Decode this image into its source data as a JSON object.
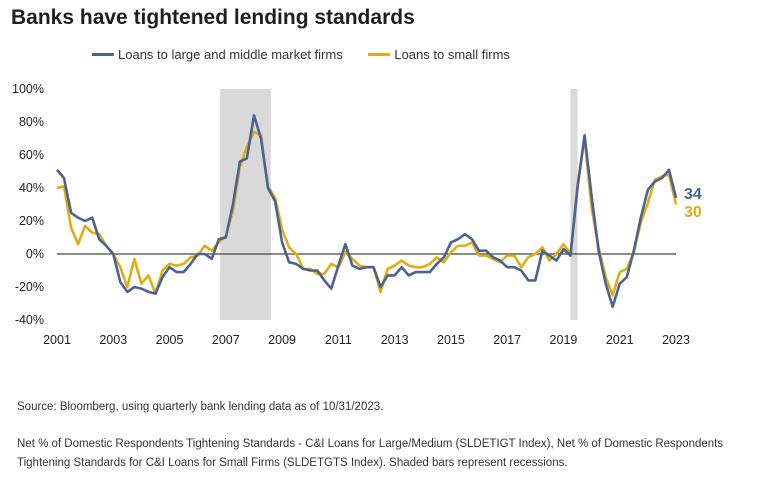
{
  "title": "Banks have tightened lending standards",
  "source": "Source: Bloomberg, using quarterly bank lending data as of 10/31/2023.",
  "note": "Net % of Domestic Respondents Tightening Standards - C&I Loans for Large/Medium (SLDETIGT Index), Net % of Domestic Respondents Tightening Standards for C&I Loans for Small Firms (SLDETGTS Index). Shaded bars represent recessions.",
  "colors": {
    "large": "#4a6394",
    "small": "#e1ad10",
    "recession": "#d9d9d9",
    "zero_line": "#444444"
  },
  "chart_data": {
    "type": "line",
    "title": "Banks have tightened lending standards",
    "xlim": [
      2001,
      2023.5
    ],
    "ylim": [
      -40,
      100
    ],
    "y_ticks": [
      -40,
      -20,
      0,
      20,
      40,
      60,
      80,
      100
    ],
    "y_tick_labels": [
      "-40%",
      "-20%",
      "0%",
      "20%",
      "40%",
      "60%",
      "80%",
      "100%"
    ],
    "x_ticks": [
      2001,
      2003,
      2005,
      2007,
      2009,
      2011,
      2013,
      2015,
      2017,
      2019,
      2021,
      2023
    ],
    "x_tick_labels": [
      "2001",
      "2003",
      "2005",
      "2007",
      "2009",
      "2011",
      "2013",
      "2015",
      "2017",
      "2019",
      "2021",
      "2023"
    ],
    "legend_position": "top",
    "recessions": [
      [
        2006.8,
        2008.6
      ],
      [
        2019.25,
        2019.5
      ]
    ],
    "series": [
      {
        "name": "Loans to large and middle market firms",
        "end_label": "34",
        "points": [
          [
            2001.0,
            51
          ],
          [
            2001.25,
            46
          ],
          [
            2001.5,
            25
          ],
          [
            2001.75,
            22
          ],
          [
            2002.0,
            20
          ],
          [
            2002.25,
            22
          ],
          [
            2002.5,
            9
          ],
          [
            2002.75,
            5
          ],
          [
            2003.0,
            0
          ],
          [
            2003.25,
            -17
          ],
          [
            2003.5,
            -23
          ],
          [
            2003.75,
            -20
          ],
          [
            2004.0,
            -21
          ],
          [
            2004.25,
            -23
          ],
          [
            2004.5,
            -24
          ],
          [
            2004.75,
            -14
          ],
          [
            2005.0,
            -8
          ],
          [
            2005.25,
            -11
          ],
          [
            2005.5,
            -11
          ],
          [
            2005.75,
            -6
          ],
          [
            2006.0,
            0
          ],
          [
            2006.25,
            0
          ],
          [
            2006.5,
            -3
          ],
          [
            2006.75,
            9
          ],
          [
            2007.0,
            10
          ],
          [
            2007.25,
            30
          ],
          [
            2007.5,
            56
          ],
          [
            2007.75,
            58
          ],
          [
            2008.0,
            84
          ],
          [
            2008.25,
            70
          ],
          [
            2008.5,
            40
          ],
          [
            2008.75,
            32
          ],
          [
            2009.0,
            7
          ],
          [
            2009.25,
            -5
          ],
          [
            2009.5,
            -6
          ],
          [
            2009.75,
            -9
          ],
          [
            2010.0,
            -10
          ],
          [
            2010.25,
            -10
          ],
          [
            2010.5,
            -16
          ],
          [
            2010.75,
            -21
          ],
          [
            2011.0,
            -7
          ],
          [
            2011.25,
            6
          ],
          [
            2011.5,
            -7
          ],
          [
            2011.75,
            -9
          ],
          [
            2012.0,
            -8
          ],
          [
            2012.25,
            -8
          ],
          [
            2012.5,
            -20
          ],
          [
            2012.75,
            -13
          ],
          [
            2013.0,
            -13
          ],
          [
            2013.25,
            -8
          ],
          [
            2013.5,
            -13
          ],
          [
            2013.75,
            -11
          ],
          [
            2014.0,
            -11
          ],
          [
            2014.25,
            -11
          ],
          [
            2014.5,
            -6
          ],
          [
            2014.75,
            -2
          ],
          [
            2015.0,
            7
          ],
          [
            2015.25,
            9
          ],
          [
            2015.5,
            12
          ],
          [
            2015.75,
            9
          ],
          [
            2016.0,
            2
          ],
          [
            2016.25,
            2
          ],
          [
            2016.5,
            -2
          ],
          [
            2016.75,
            -4
          ],
          [
            2017.0,
            -8
          ],
          [
            2017.25,
            -8
          ],
          [
            2017.5,
            -10
          ],
          [
            2017.75,
            -16
          ],
          [
            2018.0,
            -16
          ],
          [
            2018.25,
            2
          ],
          [
            2018.5,
            -1
          ],
          [
            2018.75,
            -4
          ],
          [
            2019.0,
            3
          ],
          [
            2019.25,
            -1
          ],
          [
            2019.5,
            40
          ],
          [
            2019.75,
            72
          ],
          [
            2020.0,
            35
          ],
          [
            2020.25,
            2
          ],
          [
            2020.5,
            -18
          ],
          [
            2020.75,
            -32
          ],
          [
            2021.0,
            -18
          ],
          [
            2021.25,
            -14
          ],
          [
            2021.5,
            2
          ],
          [
            2021.75,
            22
          ],
          [
            2022.0,
            39
          ],
          [
            2022.25,
            44
          ],
          [
            2022.5,
            46
          ],
          [
            2022.75,
            51
          ],
          [
            2023.0,
            34
          ]
        ]
      },
      {
        "name": "Loans to small firms",
        "end_label": "30",
        "points": [
          [
            2001.0,
            40
          ],
          [
            2001.25,
            41
          ],
          [
            2001.5,
            16
          ],
          [
            2001.75,
            6
          ],
          [
            2002.0,
            17
          ],
          [
            2002.25,
            13
          ],
          [
            2002.5,
            12
          ],
          [
            2002.75,
            5
          ],
          [
            2003.0,
            0
          ],
          [
            2003.25,
            -8
          ],
          [
            2003.5,
            -20
          ],
          [
            2003.75,
            -3
          ],
          [
            2004.0,
            -18
          ],
          [
            2004.25,
            -13
          ],
          [
            2004.5,
            -24
          ],
          [
            2004.75,
            -10
          ],
          [
            2005.0,
            -6
          ],
          [
            2005.25,
            -7
          ],
          [
            2005.5,
            -6
          ],
          [
            2005.75,
            -2
          ],
          [
            2006.0,
            -1
          ],
          [
            2006.25,
            5
          ],
          [
            2006.5,
            2
          ],
          [
            2006.75,
            7
          ],
          [
            2007.0,
            11
          ],
          [
            2007.25,
            26
          ],
          [
            2007.5,
            53
          ],
          [
            2007.75,
            65
          ],
          [
            2008.0,
            74
          ],
          [
            2008.25,
            72
          ],
          [
            2008.5,
            41
          ],
          [
            2008.75,
            34
          ],
          [
            2009.0,
            15
          ],
          [
            2009.25,
            4
          ],
          [
            2009.5,
            0
          ],
          [
            2009.75,
            -9
          ],
          [
            2010.0,
            -9
          ],
          [
            2010.25,
            -12
          ],
          [
            2010.5,
            -12
          ],
          [
            2010.75,
            -6
          ],
          [
            2011.0,
            -8
          ],
          [
            2011.25,
            1
          ],
          [
            2011.5,
            -3
          ],
          [
            2011.75,
            -7
          ],
          [
            2012.0,
            -8
          ],
          [
            2012.25,
            -8
          ],
          [
            2012.5,
            -23
          ],
          [
            2012.75,
            -9
          ],
          [
            2013.0,
            -7
          ],
          [
            2013.25,
            -4
          ],
          [
            2013.5,
            -7
          ],
          [
            2013.75,
            -8
          ],
          [
            2014.0,
            -8
          ],
          [
            2014.25,
            -6
          ],
          [
            2014.5,
            -2
          ],
          [
            2014.75,
            -5
          ],
          [
            2015.0,
            1
          ],
          [
            2015.25,
            5
          ],
          [
            2015.5,
            5
          ],
          [
            2015.75,
            7
          ],
          [
            2016.0,
            -1
          ],
          [
            2016.25,
            -1
          ],
          [
            2016.5,
            -3
          ],
          [
            2016.75,
            -5
          ],
          [
            2017.0,
            -1
          ],
          [
            2017.25,
            -1
          ],
          [
            2017.5,
            -8
          ],
          [
            2017.75,
            -2
          ],
          [
            2018.0,
            0
          ],
          [
            2018.25,
            4
          ],
          [
            2018.5,
            -4
          ],
          [
            2018.75,
            0
          ],
          [
            2019.0,
            6
          ],
          [
            2019.25,
            0
          ],
          [
            2019.5,
            42
          ],
          [
            2019.75,
            70
          ],
          [
            2020.0,
            28
          ],
          [
            2020.25,
            4
          ],
          [
            2020.5,
            -14
          ],
          [
            2020.75,
            -25
          ],
          [
            2021.0,
            -11
          ],
          [
            2021.25,
            -9
          ],
          [
            2021.5,
            1
          ],
          [
            2021.75,
            19
          ],
          [
            2022.0,
            31
          ],
          [
            2022.25,
            45
          ],
          [
            2022.5,
            47
          ],
          [
            2022.75,
            48
          ],
          [
            2023.0,
            30
          ]
        ]
      }
    ]
  }
}
